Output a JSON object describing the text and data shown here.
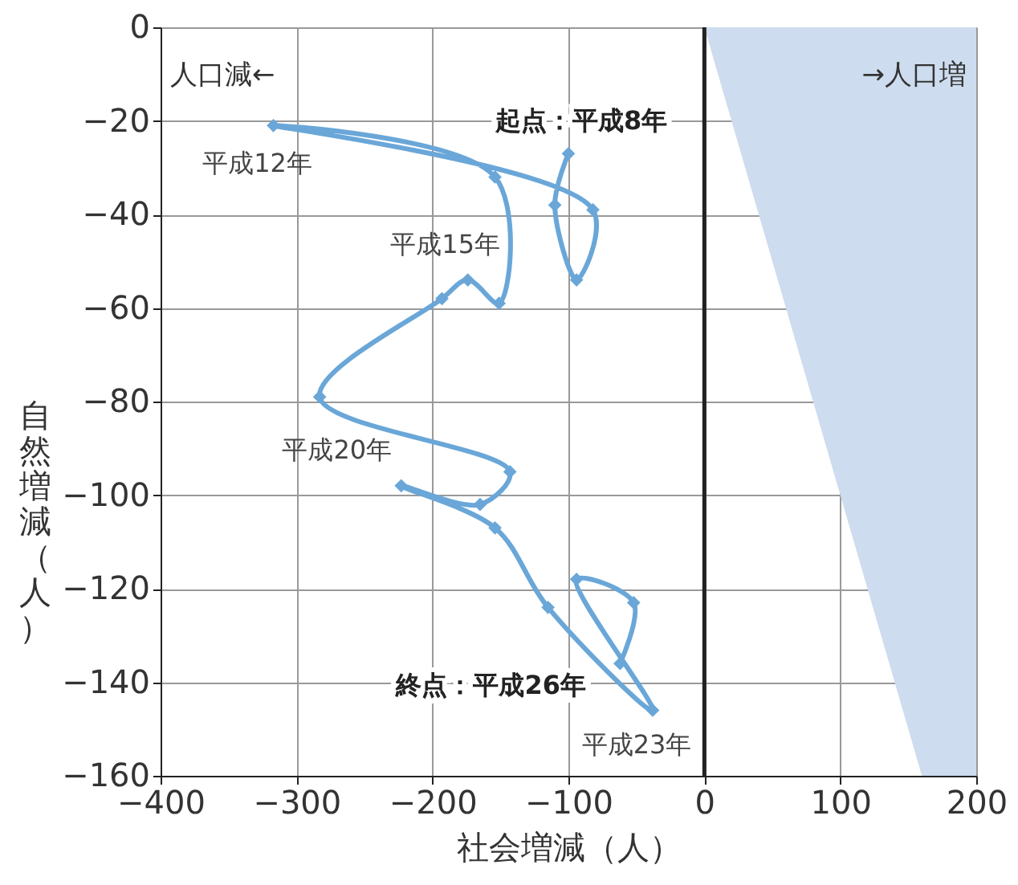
{
  "chart_data": {
    "type": "line",
    "xlabel": "社会増減（人）",
    "ylabel": "自然増減（人）",
    "xlim": [
      -400,
      200
    ],
    "xticks": [
      -400,
      -300,
      -200,
      -100,
      0,
      100,
      200
    ],
    "ylim": [
      -160,
      0
    ],
    "yticks": [
      -160,
      -140,
      -120,
      -100,
      -80,
      -60,
      -40,
      -20,
      0
    ],
    "grid": true,
    "line_style": "solid",
    "series": [
      {
        "type": "area",
        "color": "#cddcee",
        "x": [
          0,
          160,
          200
        ],
        "values": [
          0,
          -160,
          -160
        ]
      },
      {
        "marker": "diamond",
        "color": "#6aa7d8",
        "x": [
          -100,
          -110,
          -94,
          -82,
          -317,
          -154,
          -151,
          -174,
          -193,
          -283,
          -143,
          -165,
          -223,
          -154,
          -115,
          -38,
          -94,
          -52,
          -62
        ],
        "values": [
          -27,
          -38,
          -54,
          -39,
          -21,
          -32,
          -59,
          -54,
          -58,
          -79,
          -95,
          -102,
          -98,
          -107,
          -124,
          -146,
          -118,
          -123,
          -136
        ]
      }
    ],
    "ref_lines": [
      {
        "axis": "x",
        "value": 0,
        "color": "#222222"
      }
    ],
    "annotations": [
      "人口減←",
      "→人口増",
      {
        "text": "起点：平成8年",
        "x": -100,
        "y": -27
      },
      {
        "text": "平成12年",
        "x": -317,
        "y": -21
      },
      {
        "text": "平成15年",
        "x": -174,
        "y": -54
      },
      {
        "text": "平成20年",
        "x": -223,
        "y": -98
      },
      {
        "text": "平成23年",
        "x": -38,
        "y": -146
      },
      "終点：平成26年"
    ]
  }
}
